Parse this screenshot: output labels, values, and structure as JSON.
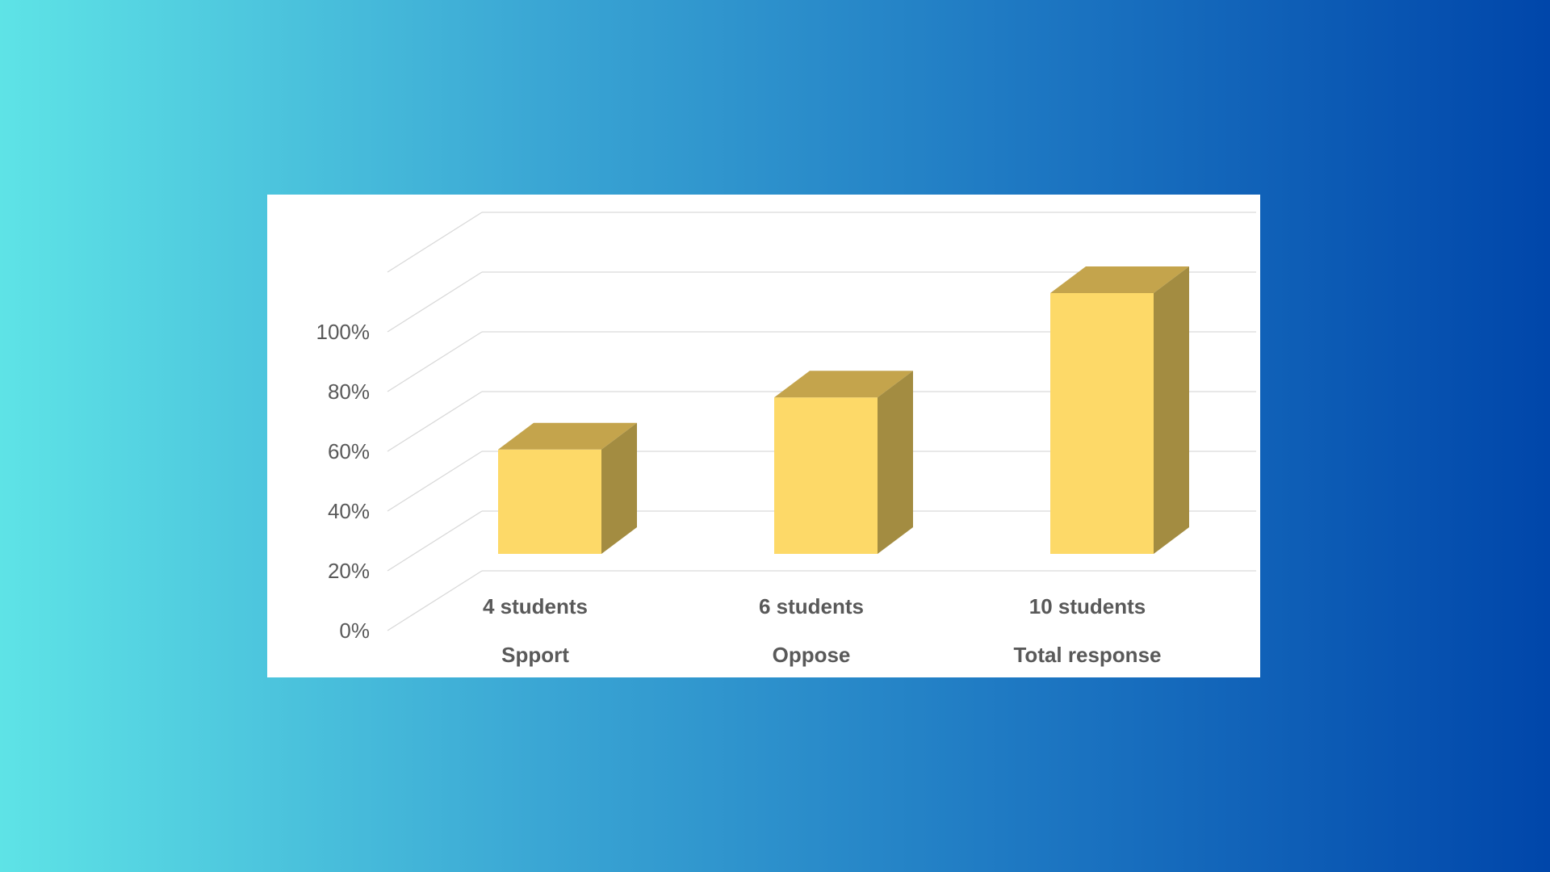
{
  "chart_data": {
    "type": "bar",
    "style": "3d-column",
    "categories": [
      "Spport",
      "Oppose",
      "Total response"
    ],
    "data_labels": [
      "4 students",
      "6 students",
      "10 students"
    ],
    "values": [
      40,
      60,
      100
    ],
    "counts": [
      4,
      6,
      10
    ],
    "ylim": [
      0,
      100
    ],
    "yticks": [
      0,
      20,
      40,
      60,
      80,
      100
    ],
    "ytick_labels": [
      "0%",
      "20%",
      "40%",
      "60%",
      "80%",
      "100%"
    ],
    "grid": true,
    "colors": {
      "bar_front": "#fdd968",
      "bar_top": "#c4a44c",
      "bar_side": "#a38c41",
      "gridline": "#d9d9d9",
      "text": "#595959"
    }
  }
}
